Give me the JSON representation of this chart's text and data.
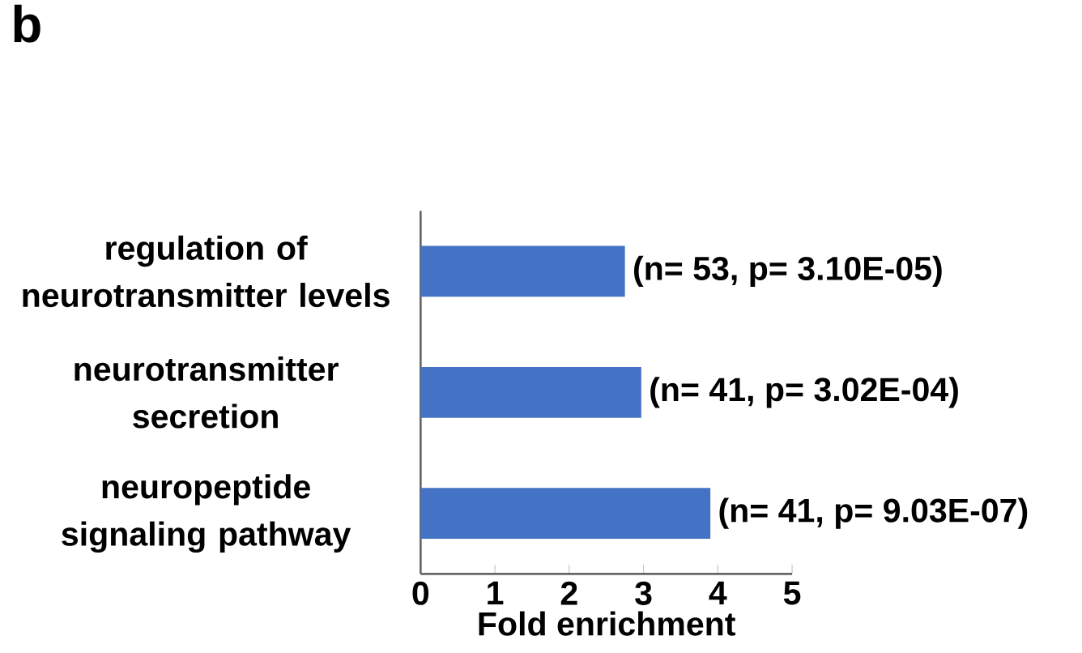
{
  "chart_data": {
    "type": "bar",
    "orientation": "horizontal",
    "title": "b",
    "xlabel": "Fold enrichment",
    "categories": [
      "regulation of neurotransmitter levels",
      "neurotransmitter secretion",
      "neuropeptide signaling pathway"
    ],
    "values": [
      2.75,
      2.97,
      3.9
    ],
    "value_labels": [
      "(n= 53, p= 3.10E-05)",
      "(n= 41, p= 3.02E-04)",
      "(n= 41, p= 9.03E-07)"
    ],
    "color": "#4472c4",
    "xlim": [
      0,
      5
    ],
    "xticks": [
      0,
      1,
      2,
      3,
      4,
      5
    ],
    "grid": false
  }
}
